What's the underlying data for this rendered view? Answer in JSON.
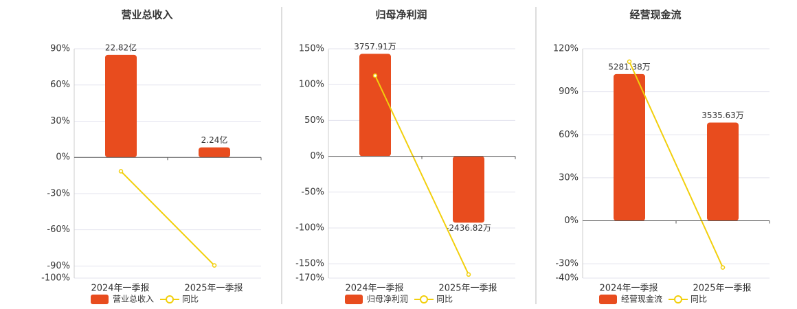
{
  "chart_data": [
    {
      "type": "bar",
      "title": "营业总收入",
      "categories": [
        "2024年一季报",
        "2025年一季报"
      ],
      "series": [
        {
          "name": "营业总收入",
          "color": "#e84c1e",
          "axis": "y2",
          "values": [
            22.82,
            2.24
          ],
          "value_labels": [
            "22.82亿",
            "2.24亿"
          ]
        },
        {
          "name": "同比",
          "type": "line",
          "color": "#f2cf0c",
          "values": [
            -11.5,
            -89.5
          ]
        }
      ],
      "ylim": [
        -100,
        90
      ],
      "yticks": [
        {
          "value": 90,
          "label": "90%"
        },
        {
          "value": 60,
          "label": "60%"
        },
        {
          "value": 30,
          "label": "30%"
        },
        {
          "value": 0,
          "label": "0%"
        },
        {
          "value": -30,
          "label": "-30%"
        },
        {
          "value": -60,
          "label": "-60%"
        },
        {
          "value": -90,
          "label": "-90%"
        },
        {
          "value": -100,
          "label": "-100%"
        }
      ],
      "y2lim": [
        -26.85,
        24.17
      ],
      "grid": true
    },
    {
      "type": "bar",
      "title": "归母净利润",
      "categories": [
        "2024年一季报",
        "2025年一季报"
      ],
      "series": [
        {
          "name": "归母净利润",
          "color": "#e84c1e",
          "axis": "y2",
          "values": [
            3757.91,
            -2436.82
          ],
          "value_labels": [
            "3757.91万",
            "-2436.82万"
          ]
        },
        {
          "name": "同比",
          "type": "line",
          "color": "#f2cf0c",
          "values": [
            112.5,
            -165
          ]
        }
      ],
      "ylim": [
        -170,
        150
      ],
      "yticks": [
        {
          "value": 150,
          "label": "150%"
        },
        {
          "value": 100,
          "label": "100%"
        },
        {
          "value": 50,
          "label": "50%"
        },
        {
          "value": 0,
          "label": "0%"
        },
        {
          "value": -50,
          "label": "-50%"
        },
        {
          "value": -100,
          "label": "-100%"
        },
        {
          "value": -150,
          "label": "-150%"
        },
        {
          "value": -170,
          "label": "-170%"
        }
      ],
      "y2lim": [
        -4471,
        3945
      ],
      "grid": true
    },
    {
      "type": "bar",
      "title": "经营现金流",
      "categories": [
        "2024年一季报",
        "2025年一季报"
      ],
      "series": [
        {
          "name": "经营现金流",
          "color": "#e84c1e",
          "axis": "y2",
          "values": [
            5281.38,
            3535.63
          ],
          "value_labels": [
            "5281.38万",
            "3535.63万"
          ]
        },
        {
          "name": "同比",
          "type": "line",
          "color": "#f2cf0c",
          "values": [
            111,
            -32.6
          ]
        }
      ],
      "ylim": [
        -40,
        120
      ],
      "yticks": [
        {
          "value": 120,
          "label": "120%"
        },
        {
          "value": 90,
          "label": "90%"
        },
        {
          "value": 60,
          "label": "60%"
        },
        {
          "value": 30,
          "label": "30%"
        },
        {
          "value": 0,
          "label": "0%"
        },
        {
          "value": -30,
          "label": "-30%"
        },
        {
          "value": -40,
          "label": "-40%"
        }
      ],
      "y2lim": [
        -2064,
        6192
      ],
      "grid": true
    }
  ]
}
